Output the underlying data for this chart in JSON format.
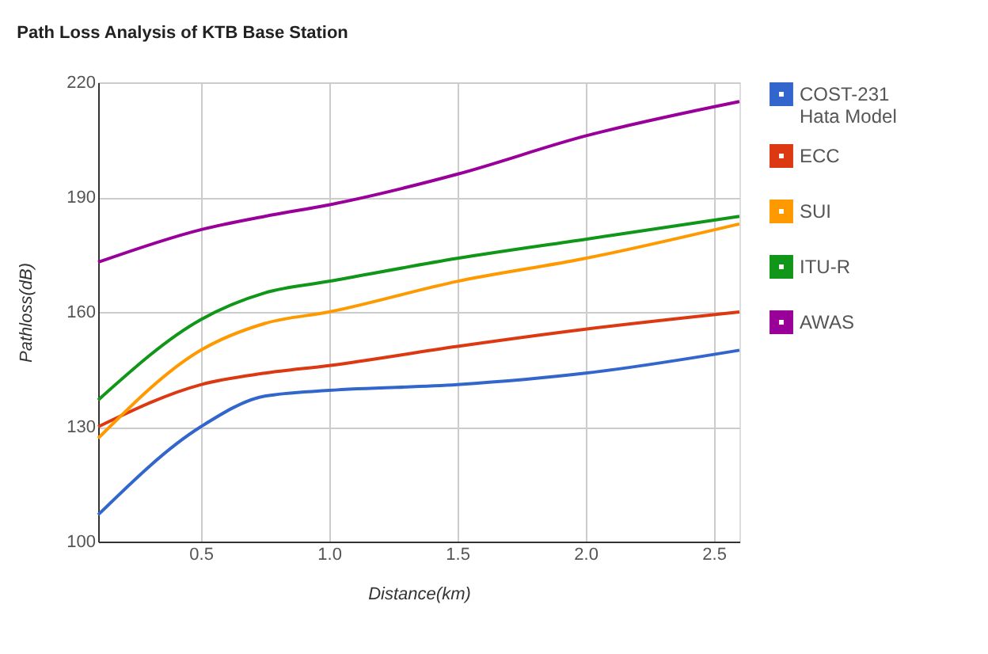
{
  "chart_data": {
    "type": "line",
    "title": "Path Loss Analysis of KTB Base Station",
    "xlabel": "Distance(km)",
    "ylabel": "Pathloss(dB)",
    "x": [
      0.1,
      0.5,
      0.75,
      1.0,
      1.5,
      2.0,
      2.6
    ],
    "series": [
      {
        "name": "COST-231 Hata Model",
        "color": "#3366cc",
        "values": [
          107,
          130,
          138,
          139.5,
          141,
          144,
          150
        ]
      },
      {
        "name": "ECC",
        "color": "#dc3912",
        "values": [
          130,
          141,
          144,
          146,
          151,
          155.5,
          160
        ]
      },
      {
        "name": "SUI",
        "color": "#ff9900",
        "values": [
          127,
          150,
          157,
          160,
          168,
          174,
          183
        ]
      },
      {
        "name": "ITU-R",
        "color": "#109618",
        "values": [
          137,
          158,
          165,
          168,
          174,
          179,
          185
        ]
      },
      {
        "name": "AWAS",
        "color": "#990099",
        "values": [
          173,
          181.5,
          185,
          188,
          196,
          206,
          215
        ]
      }
    ],
    "xlim": [
      0.1,
      2.6
    ],
    "xticks": [
      0.5,
      {
        "value": 1,
        "label": "1.0"
      },
      1.5,
      {
        "value": 2,
        "label": "2.0"
      },
      2.5
    ],
    "ylim": [
      100,
      220
    ],
    "yticks": [
      100,
      130,
      160,
      190,
      220
    ],
    "grid": true,
    "legend": "right",
    "marker": "none",
    "line_style": "solid"
  }
}
